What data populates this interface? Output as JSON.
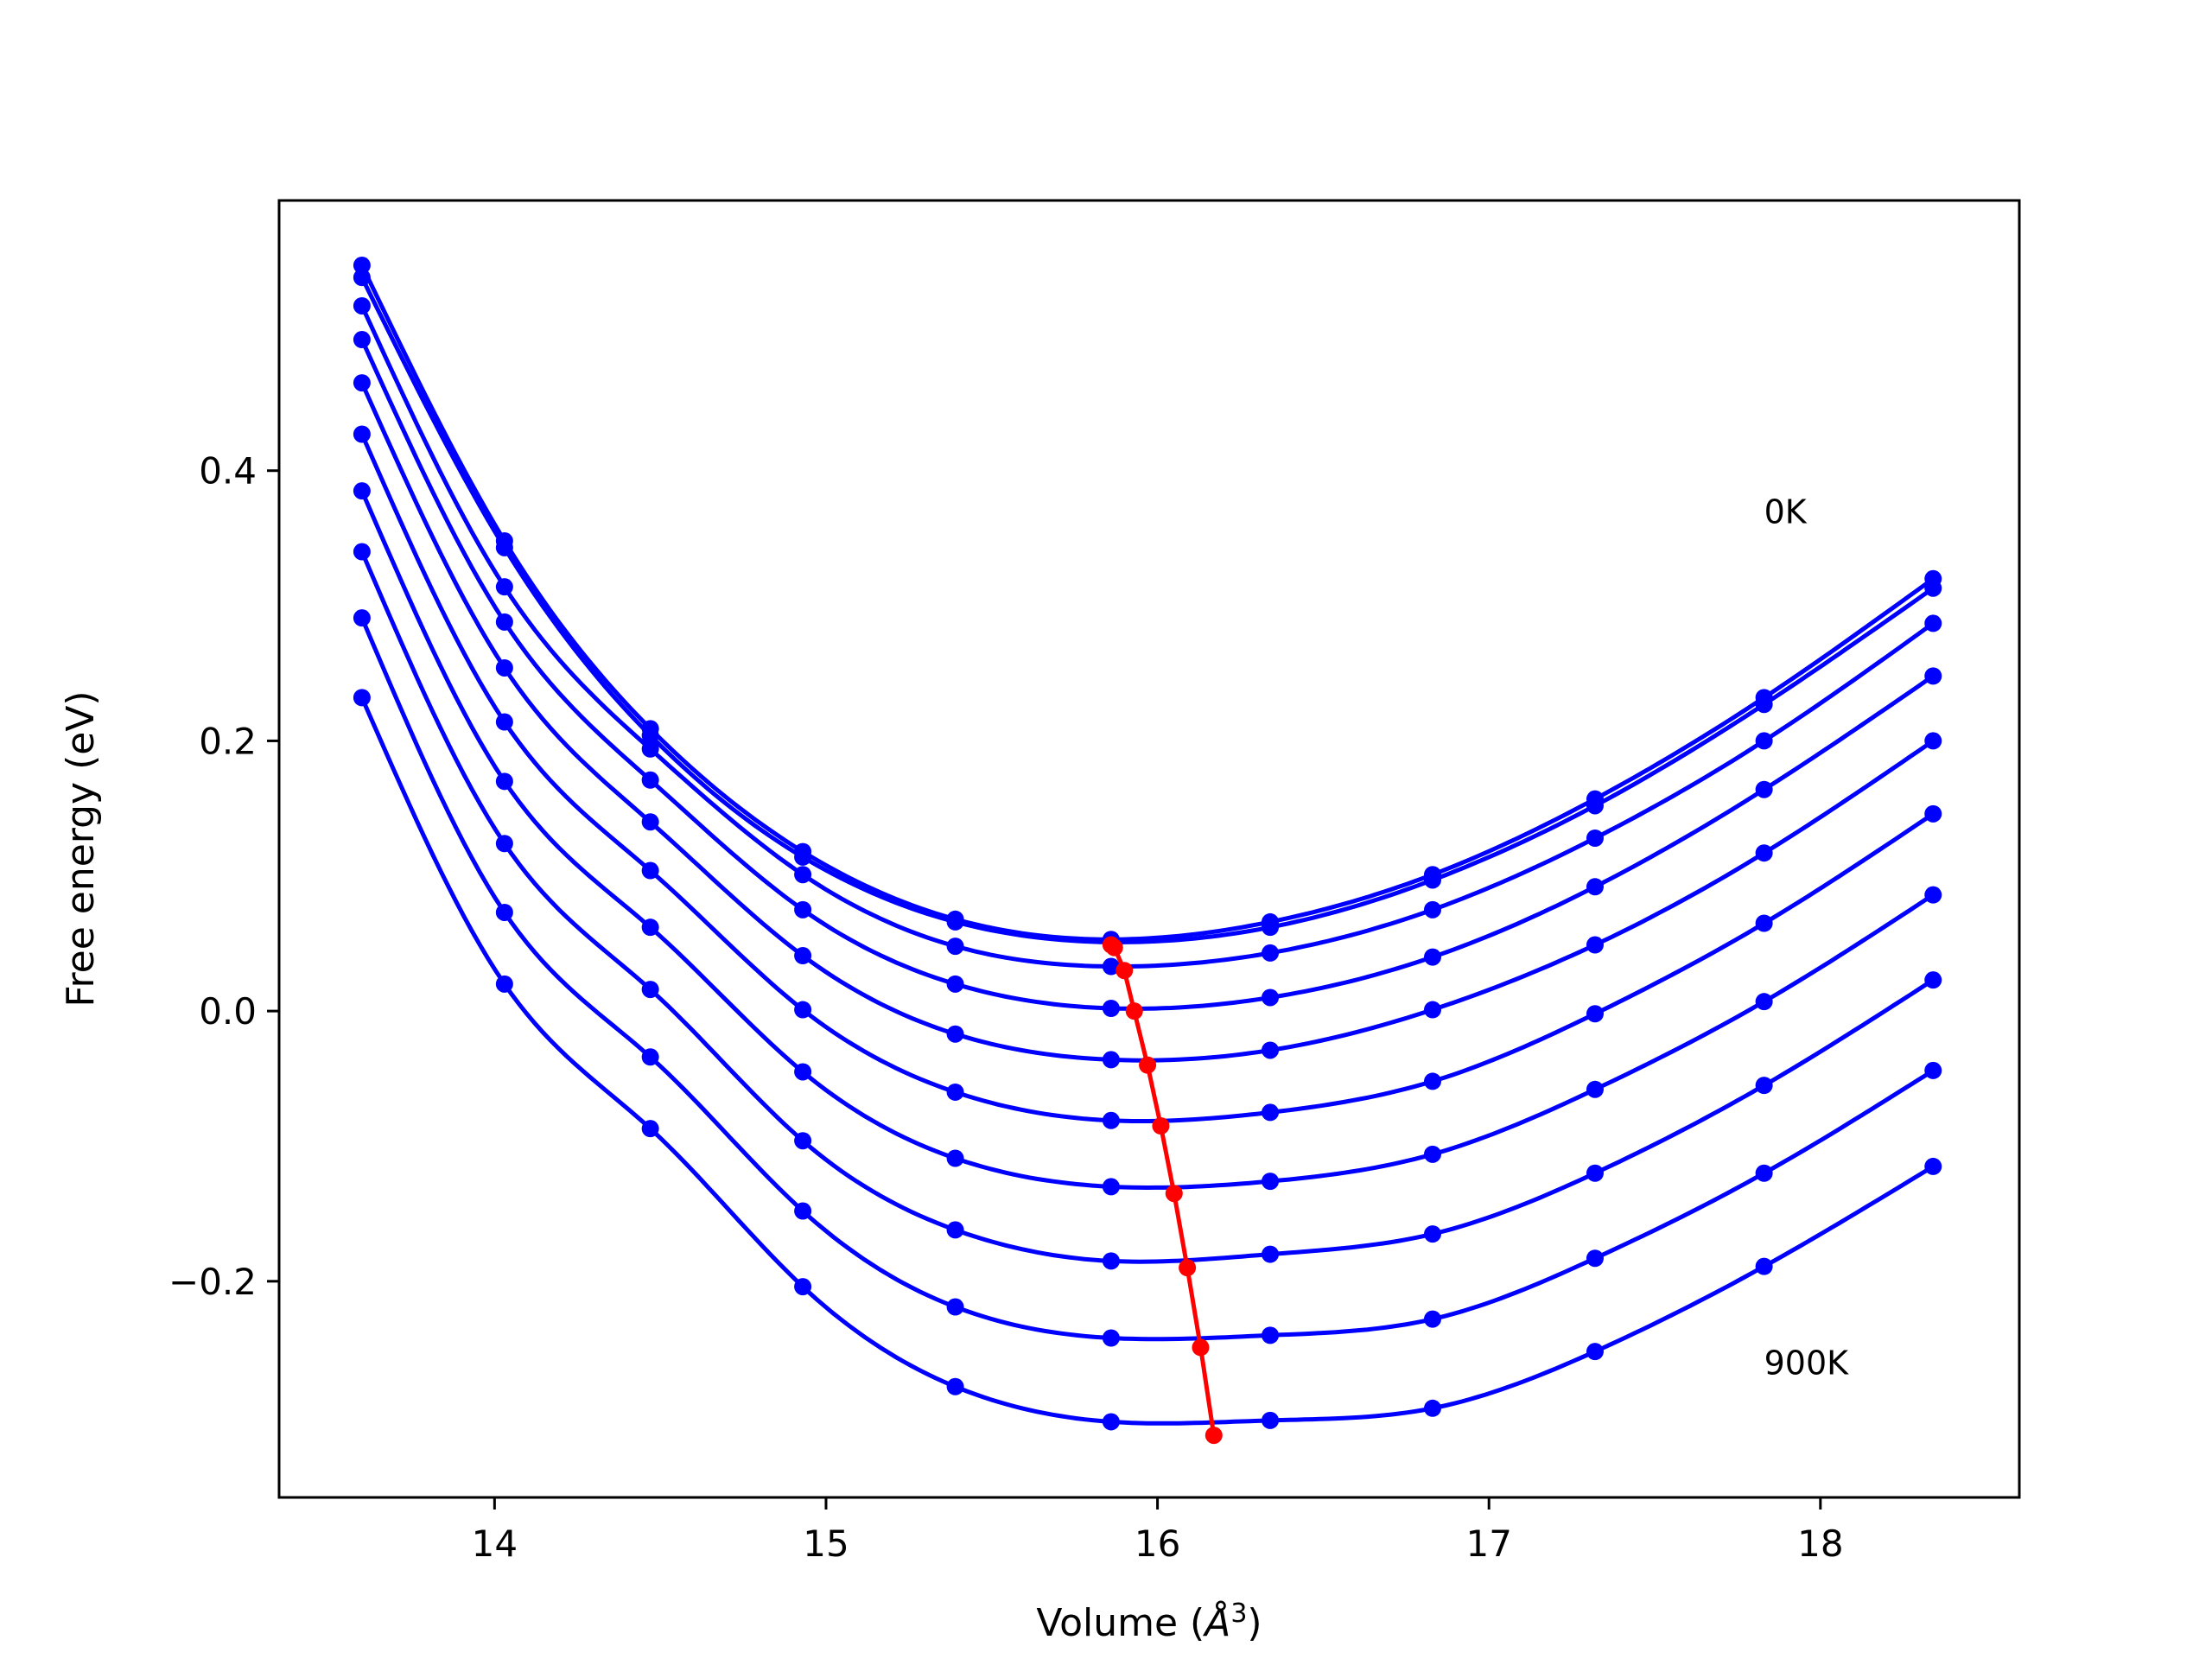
{
  "chart_data": {
    "type": "line",
    "title": "",
    "xlabel": "Volume (Å³)",
    "xlabel_parts": {
      "prefix": "Volume (",
      "symbol": "Å",
      "exponent": "3",
      "suffix": ")"
    },
    "ylabel": "Free energy (eV)",
    "xlim": [
      13.35,
      18.6
    ],
    "ylim": [
      -0.36,
      0.6
    ],
    "xticks": [
      14,
      15,
      16,
      17,
      18
    ],
    "xtick_labels": [
      "14",
      "15",
      "16",
      "17",
      "18"
    ],
    "yticks": [
      -0.2,
      0.0,
      0.2,
      0.4
    ],
    "ytick_labels": [
      "−0.2",
      "0.0",
      "0.2",
      "0.4"
    ],
    "grid": false,
    "legend": "none",
    "annotations": [
      {
        "text": "0K",
        "x": 17.83,
        "y": 0.37
      },
      {
        "text": "900K",
        "x": 17.83,
        "y": -0.26
      }
    ],
    "colors": {
      "curves": "#0000ff",
      "minima": "#ff0000",
      "axes": "#000000"
    },
    "volumes": [
      13.6,
      14.03,
      14.47,
      14.93,
      15.39,
      15.86,
      16.34,
      16.83,
      17.32,
      17.83,
      18.34
    ],
    "series": [
      {
        "temperature_index": 0,
        "values": [
          0.552,
          0.348,
          0.209,
          0.118,
          0.068,
          0.053,
          0.066,
          0.101,
          0.157,
          0.232,
          0.32
        ],
        "minimum": {
          "x": 15.86,
          "y": 0.049
        }
      },
      {
        "temperature_index": 1,
        "values": [
          0.543,
          0.343,
          0.204,
          0.114,
          0.066,
          0.051,
          0.062,
          0.097,
          0.152,
          0.227,
          0.313
        ],
        "minimum": {
          "x": 15.87,
          "y": 0.047
        }
      },
      {
        "temperature_index": 2,
        "values": [
          0.522,
          0.314,
          0.194,
          0.101,
          0.048,
          0.033,
          0.043,
          0.075,
          0.128,
          0.2,
          0.287
        ],
        "minimum": {
          "x": 15.9,
          "y": 0.03
        }
      },
      {
        "temperature_index": 3,
        "values": [
          0.497,
          0.288,
          0.171,
          0.075,
          0.02,
          0.002,
          0.01,
          0.04,
          0.092,
          0.164,
          0.248
        ],
        "minimum": {
          "x": 15.93,
          "y": 0.0
        }
      },
      {
        "temperature_index": 4,
        "values": [
          0.465,
          0.254,
          0.14,
          0.041,
          -0.017,
          -0.036,
          -0.029,
          0.001,
          0.049,
          0.117,
          0.2
        ],
        "minimum": {
          "x": 15.97,
          "y": -0.04
        }
      },
      {
        "temperature_index": 5,
        "values": [
          0.427,
          0.214,
          0.104,
          0.001,
          -0.06,
          -0.081,
          -0.075,
          -0.052,
          -0.002,
          0.065,
          0.146
        ],
        "minimum": {
          "x": 16.01,
          "y": -0.085
        }
      },
      {
        "temperature_index": 6,
        "values": [
          0.385,
          0.17,
          0.062,
          -0.045,
          -0.109,
          -0.13,
          -0.126,
          -0.106,
          -0.058,
          0.007,
          0.086
        ],
        "minimum": {
          "x": 16.05,
          "y": -0.135
        }
      },
      {
        "temperature_index": 7,
        "values": [
          0.34,
          0.124,
          0.016,
          -0.096,
          -0.162,
          -0.185,
          -0.18,
          -0.165,
          -0.12,
          -0.055,
          0.023
        ],
        "minimum": {
          "x": 16.09,
          "y": -0.19
        }
      },
      {
        "temperature_index": 8,
        "values": [
          0.291,
          0.073,
          -0.034,
          -0.148,
          -0.219,
          -0.242,
          -0.24,
          -0.228,
          -0.183,
          -0.12,
          -0.044
        ],
        "minimum": {
          "x": 16.13,
          "y": -0.249
        }
      },
      {
        "temperature_index": 9,
        "values": [
          0.232,
          0.02,
          -0.087,
          -0.204,
          -0.278,
          -0.304,
          -0.303,
          -0.294,
          -0.252,
          -0.189,
          -0.115
        ],
        "minimum": {
          "x": 16.17,
          "y": -0.314
        }
      }
    ]
  }
}
